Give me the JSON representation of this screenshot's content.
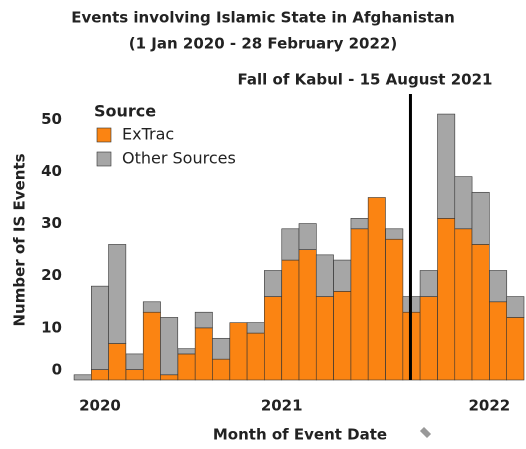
{
  "chart_data": {
    "type": "stacked_bar",
    "title": "Events involving Islamic State in Afghanistan",
    "subtitle": "(1 Jan 2020 - 28 February 2022)",
    "x_label": "Month of Event Date",
    "y_label": "Number of IS Events",
    "legend_title": "Source",
    "legend": "top-left",
    "x": [
      2020.042,
      2020.125,
      2020.208,
      2020.292,
      2020.375,
      2020.458,
      2020.542,
      2020.625,
      2020.708,
      2020.792,
      2020.875,
      2020.958,
      2021.042,
      2021.125,
      2021.208,
      2021.292,
      2021.375,
      2021.458,
      2021.542,
      2021.625,
      2021.708,
      2021.792,
      2021.875,
      2021.958,
      2022.042,
      2022.125
    ],
    "series": [
      {
        "name": "ExTrac",
        "color": "#fb8412",
        "values": [
          0,
          2,
          7,
          2,
          13,
          1,
          5,
          10,
          4,
          11,
          9,
          16,
          23,
          25,
          16,
          17,
          29,
          35,
          27,
          13,
          16,
          31,
          29,
          26,
          15,
          12
        ]
      },
      {
        "name": "Other Sources",
        "color": "#a6a6a6",
        "values": [
          1,
          16,
          19,
          3,
          2,
          11,
          1,
          3,
          4,
          0,
          2,
          5,
          6,
          5,
          8,
          6,
          2,
          0,
          2,
          3,
          5,
          20,
          10,
          10,
          6,
          4
        ]
      }
    ],
    "annotation": {
      "text": "Fall of Kabul - 15 August 2021",
      "x": 2021.62
    },
    "xlim": [
      2020.0,
      2022.1667
    ],
    "xticks": [
      2020,
      2021,
      2022
    ],
    "ylim": [
      0,
      56
    ],
    "yticks": [
      0,
      10,
      20,
      30,
      40,
      50
    ],
    "grid": false
  }
}
